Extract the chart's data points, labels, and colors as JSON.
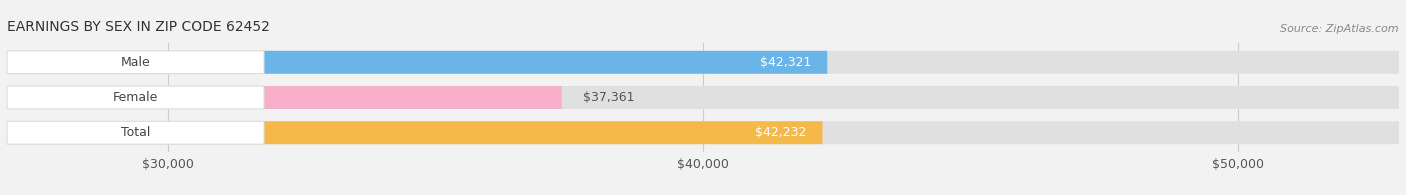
{
  "title": "EARNINGS BY SEX IN ZIP CODE 62452",
  "source": "Source: ZipAtlas.com",
  "categories": [
    "Male",
    "Female",
    "Total"
  ],
  "values": [
    42321,
    37361,
    42232
  ],
  "labels": [
    "$42,321",
    "$37,361",
    "$42,232"
  ],
  "bar_colors": [
    "#6ab4e8",
    "#f7aec8",
    "#f5b94a"
  ],
  "label_colors": [
    "white",
    "#555555",
    "white"
  ],
  "xmin": 27000,
  "xmax": 53000,
  "xticks": [
    30000,
    40000,
    50000
  ],
  "xticklabels": [
    "$30,000",
    "$40,000",
    "$50,000"
  ],
  "background_color": "#f0f0f0",
  "bar_bg_color": "#e0e0e0",
  "category_label_color": "#444444",
  "title_fontsize": 10,
  "source_fontsize": 8,
  "tick_fontsize": 9,
  "bar_label_fontsize": 9,
  "category_fontsize": 9
}
